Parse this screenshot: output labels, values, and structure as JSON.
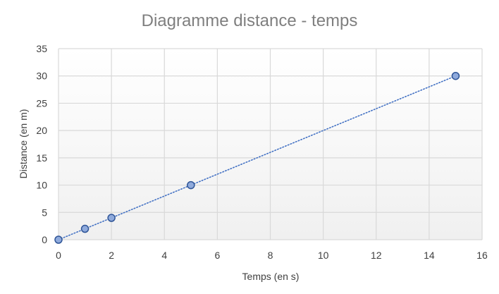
{
  "chart_data": {
    "type": "scatter",
    "title": "Diagramme distance - temps",
    "xlabel": "Temps (en s)",
    "ylabel": "Distance (en m)",
    "xlim": [
      0,
      16
    ],
    "ylim": [
      0,
      35
    ],
    "xticks": [
      0,
      2,
      4,
      6,
      8,
      10,
      12,
      14,
      16
    ],
    "yticks": [
      0,
      5,
      10,
      15,
      20,
      25,
      30,
      35
    ],
    "grid": true,
    "legend": "none",
    "series": [
      {
        "x": [
          0,
          1,
          2,
          5,
          15
        ],
        "y": [
          0,
          2,
          4,
          10,
          30
        ],
        "color": "#4472C4",
        "marker": "circle",
        "trendline": "linear-dotted"
      }
    ]
  }
}
